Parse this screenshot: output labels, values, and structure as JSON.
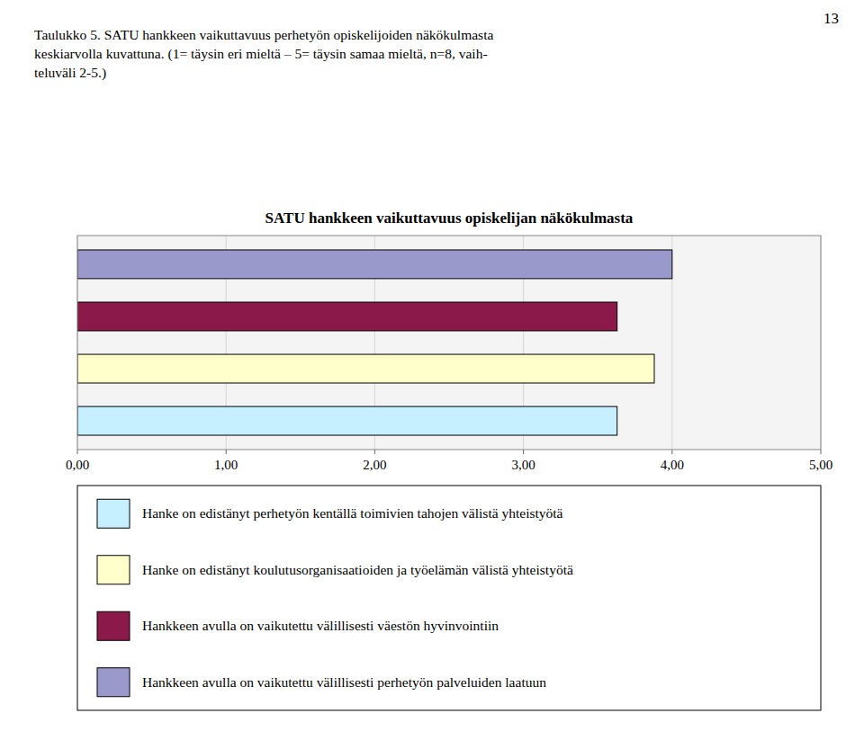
{
  "page_number": "13",
  "header_lines": [
    "Taulukko 5. SATU hankkeen vaikuttavuus perhetyön opiskelijoiden näkökulmasta",
    "keskiarvolla kuvattuna. (1= täysin eri mieltä – 5= täysin samaa mieltä, n=8, vaih-",
    "teluväli 2-5.)"
  ],
  "chart_data": {
    "type": "bar",
    "orientation": "horizontal",
    "title": "SATU hankkeen vaikuttavuus opiskelijan näkökulmasta",
    "categories": [
      "Hanke on edistänyt perhetyön kentällä toimivien tahojen välistä yhteistyötä",
      "Hanke on edistänyt koulutusorganisaatioiden ja työelämän välistä yhteistyötä",
      "Hankkeen avulla on vaikutettu välillisesti väestön hyvinvointiin",
      "Hankkeen avulla on vaikutettu välillisesti perhetyön palveluiden laatuun"
    ],
    "values": [
      3.63,
      3.88,
      3.63,
      4.0
    ],
    "colors": [
      "#c6efff",
      "#ffffcc",
      "#8b1a4a",
      "#9999cc"
    ],
    "xlim": [
      0,
      5
    ],
    "xticks": [
      {
        "value": 0,
        "label": "0,00"
      },
      {
        "value": 1,
        "label": "1,00"
      },
      {
        "value": 2,
        "label": "2,00"
      },
      {
        "value": 3,
        "label": "3,00"
      },
      {
        "value": 4,
        "label": "4,00"
      },
      {
        "value": 5,
        "label": "5,00"
      }
    ],
    "grid": true,
    "legend": "bottom",
    "tick_labels": "x"
  }
}
